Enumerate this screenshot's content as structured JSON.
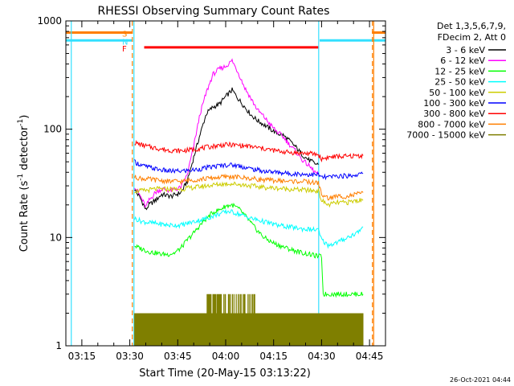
{
  "chart_data": {
    "type": "line",
    "title": "RHESSI Observing Summary Count Rates",
    "xlabel": "Start Time (20-May-15 03:13:22)",
    "ylabel": "Count Rate (s⁻¹ detector⁻¹)",
    "ylabel_main": "Count Rate (s",
    "ylabel_sup1": "-1",
    "ylabel_mid": " detector",
    "ylabel_sup2": "-1",
    "ylabel_end": ")",
    "y_scale": "log",
    "ylim": [
      1,
      1000
    ],
    "xlim": [
      "03:10",
      "04:50"
    ],
    "x_ticks": [
      {
        "t": 15,
        "label": "03:15"
      },
      {
        "t": 30,
        "label": "03:30"
      },
      {
        "t": 45,
        "label": "03:45"
      },
      {
        "t": 60,
        "label": "04:00"
      },
      {
        "t": 75,
        "label": "04:15"
      },
      {
        "t": 90,
        "label": "04:30"
      },
      {
        "t": 105,
        "label": "04:45"
      }
    ],
    "x_units": "minutes after 03:00",
    "y_ticks": [
      {
        "v": 1,
        "label": "1"
      },
      {
        "v": 10,
        "label": "10"
      },
      {
        "v": 100,
        "label": "100"
      },
      {
        "v": 1000,
        "label": "1000"
      }
    ],
    "legend_header": [
      "Det 1,3,5,6,7,9,",
      "FDecim 2, Att 0"
    ],
    "legend_position": "right",
    "grid": false,
    "footer_date": "26-Oct-2021 04:44",
    "flags": [
      {
        "code": "S",
        "color": "#ff7f00",
        "segments": [
          [
            10,
            30.8
          ],
          [
            105.8,
            110
          ]
        ],
        "level": 780
      },
      {
        "code": "N",
        "color": "#33e0ff",
        "segments": [
          [
            10,
            30.8
          ],
          [
            89.4,
            110
          ]
        ],
        "level": 660
      },
      {
        "code": "F",
        "color": "#ff0000",
        "segments": [
          [
            34.5,
            89.0
          ]
        ],
        "level": 570
      }
    ],
    "vlines": [
      {
        "t": 11.7,
        "color": "#33e0ff",
        "style": "solid"
      },
      {
        "t": 30.8,
        "color": "#ff7f00",
        "style": "dashed"
      },
      {
        "t": 31.3,
        "color": "#33e0ff",
        "style": "solid"
      },
      {
        "t": 89.1,
        "color": "#33e0ff",
        "style": "solid"
      },
      {
        "t": 105.9,
        "color": "#ff7f00",
        "style": "dashed"
      },
      {
        "t": 106.3,
        "color": "#ff7f00",
        "style": "solid"
      }
    ],
    "series": [
      {
        "name": "3 - 6 keV",
        "color": "#000000",
        "x": [
          31.5,
          32,
          33,
          34,
          35,
          36,
          38,
          40,
          43,
          46,
          48,
          50,
          52,
          54,
          56,
          58,
          60,
          62,
          64,
          66,
          68,
          70,
          72,
          74,
          76,
          78,
          80,
          82,
          84,
          86,
          88,
          89
        ],
        "y": [
          28,
          26,
          24,
          21,
          18,
          20,
          22,
          25,
          24,
          26,
          33,
          55,
          90,
          140,
          160,
          170,
          200,
          230,
          190,
          160,
          135,
          120,
          110,
          100,
          92,
          88,
          78,
          68,
          58,
          52,
          48,
          47
        ]
      },
      {
        "name": "6 - 12 keV",
        "color": "#ff00ff",
        "x": [
          31.5,
          32,
          33,
          34,
          35,
          36,
          38,
          40,
          43,
          46,
          48,
          50,
          52,
          54,
          56,
          58,
          60,
          62,
          64,
          66,
          68,
          70,
          72,
          74,
          76,
          78,
          80,
          82,
          84,
          86,
          88,
          89
        ],
        "y": [
          30,
          28,
          25,
          22,
          19,
          22,
          26,
          28,
          27,
          29,
          38,
          70,
          140,
          220,
          320,
          360,
          380,
          430,
          330,
          240,
          190,
          150,
          130,
          110,
          95,
          85,
          72,
          62,
          52,
          46,
          40,
          38
        ]
      },
      {
        "name": "12 - 25 keV",
        "color": "#00ff00",
        "x": [
          31.5,
          32,
          33,
          34,
          35,
          36,
          38,
          40,
          42,
          44,
          46,
          48,
          50,
          52,
          54,
          56,
          58,
          60,
          62,
          64,
          66,
          68,
          70,
          72,
          74,
          76,
          78,
          80,
          82,
          84,
          86,
          88,
          89,
          90,
          90.5,
          95,
          100,
          103
        ],
        "y": [
          8.5,
          8.2,
          8.0,
          7.8,
          7.6,
          7.4,
          7.2,
          7.0,
          7.0,
          7.2,
          8.0,
          9.5,
          11,
          13,
          15,
          17,
          18,
          19.5,
          20,
          18.5,
          16,
          13.5,
          11.5,
          10,
          9.2,
          8.6,
          8.2,
          7.8,
          7.5,
          7.2,
          7.0,
          6.8,
          6.7,
          6.7,
          3.0,
          3.0,
          3.0,
          3.0
        ]
      },
      {
        "name": "25 - 50 keV",
        "color": "#00ffff",
        "x": [
          31.5,
          34,
          38,
          42,
          46,
          50,
          54,
          58,
          61,
          64,
          68,
          72,
          76,
          80,
          84,
          88,
          89,
          90,
          92,
          95,
          98,
          101,
          103
        ],
        "y": [
          15,
          14,
          13.5,
          13,
          13,
          14,
          15,
          16.5,
          17.5,
          16.5,
          15,
          14,
          13,
          12.5,
          12,
          11.8,
          11.7,
          9.5,
          8.5,
          9,
          10,
          11,
          12.5
        ]
      },
      {
        "name": "50 - 100 keV",
        "color": "#cccc00",
        "x": [
          31.5,
          34,
          38,
          42,
          46,
          50,
          54,
          58,
          61,
          64,
          68,
          72,
          76,
          80,
          84,
          88,
          89,
          90,
          92,
          95,
          98,
          101,
          103
        ],
        "y": [
          27,
          27,
          28,
          28,
          28,
          29,
          30,
          31,
          31.5,
          31,
          30,
          29,
          28.5,
          28,
          27.5,
          27,
          27,
          22,
          20,
          21,
          21,
          22,
          22
        ]
      },
      {
        "name": "100 - 300 keV",
        "color": "#0000ff",
        "x": [
          31.5,
          34,
          38,
          42,
          46,
          50,
          54,
          58,
          61,
          64,
          68,
          72,
          76,
          80,
          84,
          88,
          89,
          90,
          92,
          95,
          98,
          101,
          103
        ],
        "y": [
          50,
          46,
          43,
          41,
          41,
          42,
          44,
          46,
          47,
          46,
          43,
          41,
          40,
          39,
          38.5,
          38,
          38,
          36,
          36,
          37,
          37,
          38,
          39
        ]
      },
      {
        "name": "300 - 800 keV",
        "color": "#ff0000",
        "x": [
          31.5,
          34,
          38,
          42,
          46,
          50,
          54,
          58,
          61,
          64,
          68,
          72,
          76,
          80,
          84,
          88,
          89,
          90,
          92,
          95,
          98,
          101,
          103
        ],
        "y": [
          75,
          71,
          67,
          64,
          63,
          65,
          68,
          71,
          72,
          71,
          69,
          66,
          63,
          61,
          60,
          59,
          58,
          53,
          55,
          56,
          56,
          57,
          57
        ]
      },
      {
        "name": "800 - 7000 keV",
        "color": "#ff7f00",
        "x": [
          31.5,
          34,
          38,
          42,
          46,
          50,
          54,
          58,
          61,
          64,
          68,
          72,
          76,
          80,
          84,
          88,
          89,
          90,
          92,
          95,
          98,
          101,
          103
        ],
        "y": [
          36,
          35,
          34,
          33,
          33,
          34,
          35,
          36,
          36.5,
          36,
          35,
          34,
          33.5,
          33,
          33,
          32,
          32,
          25,
          23,
          24,
          24,
          25,
          26
        ]
      },
      {
        "name": "7000 - 15000 keV",
        "color": "#7f7f00",
        "x": [
          31.5,
          40,
          50,
          55,
          60,
          65,
          70,
          80,
          89,
          103
        ],
        "y": [
          2.0,
          2.0,
          2.0,
          2.0,
          2.0,
          2.0,
          2.0,
          2.0,
          2.0,
          2.0
        ]
      }
    ]
  }
}
